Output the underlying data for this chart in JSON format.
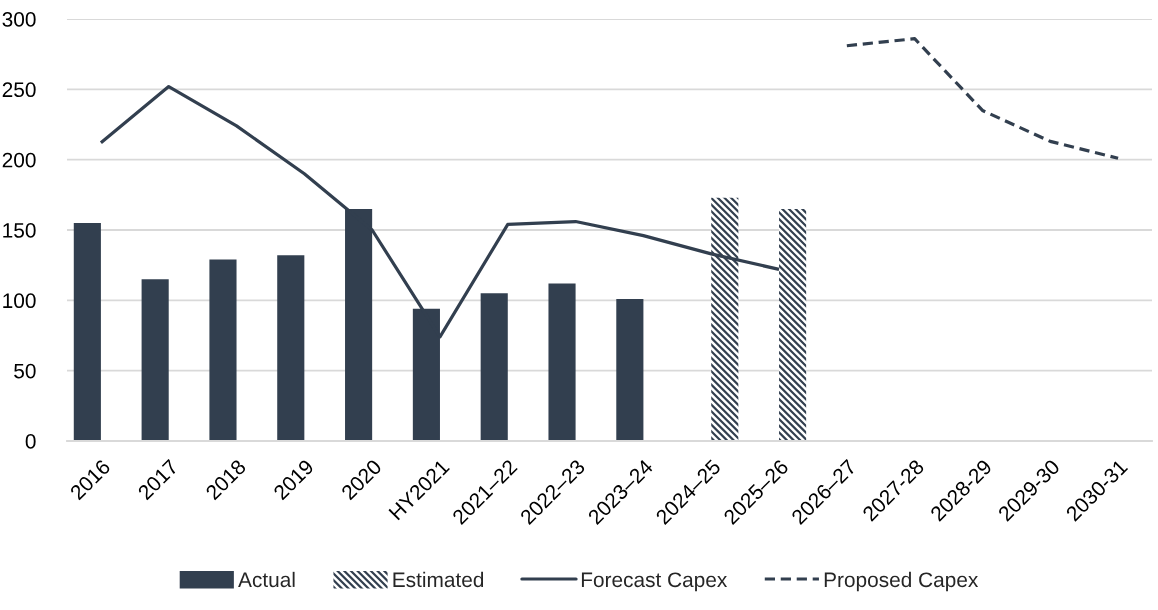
{
  "chart_data": {
    "type": "bar",
    "categories": [
      "2016",
      "2017",
      "2018",
      "2019",
      "2020",
      "HY2021",
      "2021–22",
      "2022–23",
      "2023–24",
      "2024–25",
      "2025–26",
      "2026–27",
      "2027-28",
      "2028-29",
      "2029-30",
      "2030-31"
    ],
    "series": [
      {
        "name": "Actual",
        "color": "#323f4f",
        "values": [
          155,
          115,
          129,
          132,
          165,
          94,
          105,
          112,
          101,
          null,
          null,
          null,
          null,
          null,
          null,
          null
        ]
      },
      {
        "name": "Estimated",
        "color": "#323f4f",
        "values": [
          null,
          null,
          null,
          null,
          null,
          null,
          null,
          null,
          null,
          173,
          165,
          null,
          null,
          null,
          null,
          null
        ]
      },
      {
        "name": "Forecast Capex",
        "type": "line",
        "color": "#323f4f",
        "line_style": "solid",
        "values": [
          212,
          252,
          224,
          190,
          150,
          74,
          154,
          156,
          146,
          133,
          122,
          null,
          null,
          null,
          null,
          null
        ]
      },
      {
        "name": "Proposed Capex",
        "type": "line",
        "color": "#323f4f",
        "line_style": "dashed",
        "values": [
          null,
          null,
          null,
          null,
          null,
          null,
          null,
          null,
          null,
          null,
          null,
          281,
          286,
          235,
          213,
          201
        ]
      }
    ],
    "ylim": [
      0,
      300
    ],
    "yticks": [
      0,
      50,
      100,
      150,
      200,
      250,
      300
    ],
    "grid": "y",
    "legend": "bottom"
  }
}
